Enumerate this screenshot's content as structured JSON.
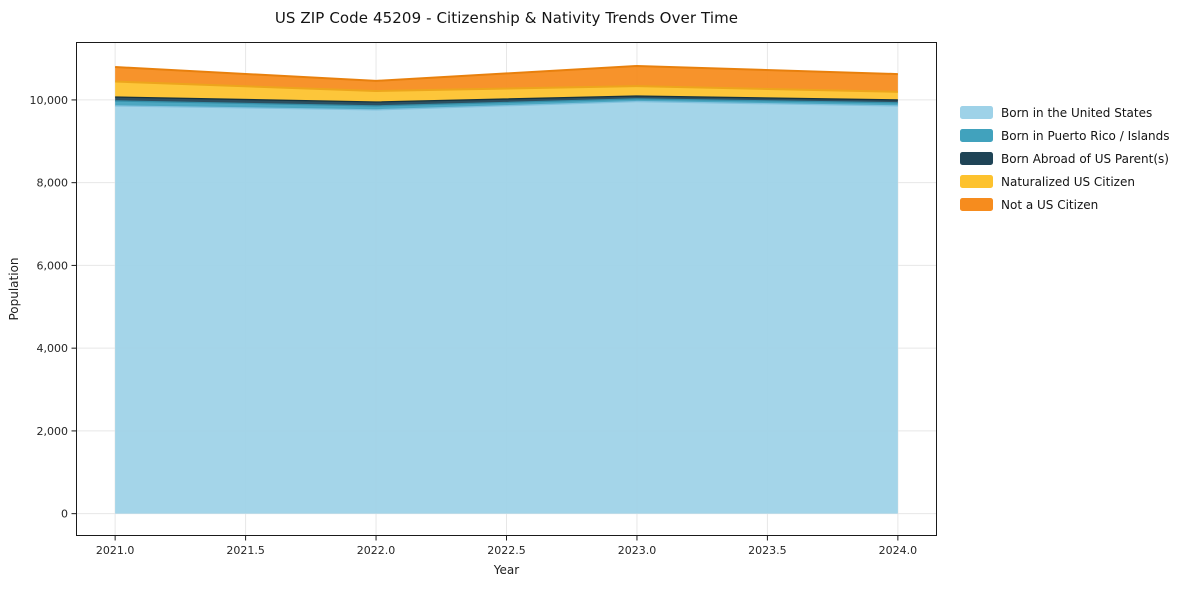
{
  "chart_data": {
    "type": "area",
    "stacked": true,
    "title": "US ZIP Code 45209 - Citizenship & Nativity Trends Over Time",
    "xlabel": "Year",
    "ylabel": "Population",
    "x": [
      2021,
      2022,
      2023,
      2024
    ],
    "series": [
      {
        "name": "Born in the United States",
        "color": "#9ed2e8",
        "edge": "#82c2de",
        "values": [
          9855,
          9760,
          9960,
          9855
        ]
      },
      {
        "name": "Born in Puerto Rico / Islands",
        "color": "#41a2bd",
        "edge": "#358ea8",
        "values": [
          120,
          95,
          65,
          75
        ]
      },
      {
        "name": "Born Abroad of US Parent(s)",
        "color": "#1f4456",
        "edge": "#16333f",
        "values": [
          95,
          95,
          70,
          70
        ]
      },
      {
        "name": "Naturalized US Citizen",
        "color": "#fdc22e",
        "edge": "#eda51c",
        "values": [
          375,
          265,
          240,
          195
        ]
      },
      {
        "name": "Not a US Citizen",
        "color": "#f68c1e",
        "edge": "#e8800d",
        "values": [
          350,
          245,
          485,
          430
        ]
      }
    ],
    "xlim": [
      2020.85,
      2024.15
    ],
    "ylim": [
      -540,
      11400
    ],
    "xticks": {
      "values": [
        2021.0,
        2021.5,
        2022.0,
        2022.5,
        2023.0,
        2023.5,
        2024.0
      ],
      "labels": [
        "2021.0",
        "2021.5",
        "2022.0",
        "2022.5",
        "2023.0",
        "2023.5",
        "2024.0"
      ]
    },
    "yticks": {
      "values": [
        0,
        2000,
        4000,
        6000,
        8000,
        10000
      ],
      "labels": [
        "0",
        "2,000",
        "4,000",
        "6,000",
        "8,000",
        "10,000"
      ]
    },
    "grid": true,
    "legend_position": "right"
  },
  "colors": {
    "background": "#ffffff",
    "spine": "#1a1a1a",
    "grid": "#e7e7e7",
    "tick_text": "#262626"
  }
}
